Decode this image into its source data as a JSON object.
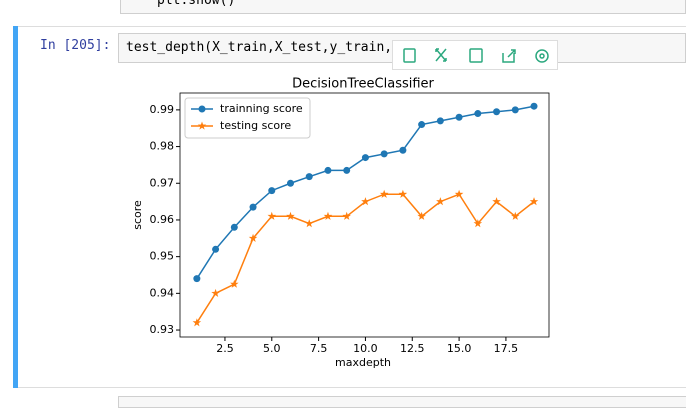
{
  "notebook": {
    "prev_code": "plt.show()",
    "prompt": "In [205]:",
    "code": "test_depth(X_train,X_test,y_train,"
  },
  "chart_data": {
    "type": "line",
    "title": "DecisionTreeClassifier",
    "x_label": "maxdepth",
    "y_label": "score",
    "x": [
      1,
      2,
      3,
      4,
      5,
      6,
      7,
      8,
      9,
      10,
      11,
      12,
      13,
      14,
      15,
      16,
      17,
      18,
      19
    ],
    "series": [
      {
        "name": "trainning score",
        "color": "#1f77b4",
        "marker": "circle",
        "values": [
          0.944,
          0.952,
          0.958,
          0.9635,
          0.968,
          0.97,
          0.9718,
          0.9735,
          0.9735,
          0.977,
          0.978,
          0.979,
          0.986,
          0.987,
          0.988,
          0.989,
          0.9895,
          0.99,
          0.991
        ]
      },
      {
        "name": "testing score",
        "color": "#ff7f0e",
        "marker": "star",
        "values": [
          0.932,
          0.94,
          0.9425,
          0.955,
          0.961,
          0.961,
          0.959,
          0.961,
          0.961,
          0.965,
          0.967,
          0.967,
          0.961,
          0.965,
          0.967,
          0.959,
          0.965,
          0.961,
          0.965
        ]
      }
    ],
    "xlim": [
      0.1,
      19.8
    ],
    "ylim": [
      0.9281,
      0.9946
    ],
    "xticks": [
      2.5,
      {
        "value": 5,
        "label": "5.0"
      },
      7.5,
      {
        "value": 10,
        "label": "10.0"
      },
      12.5,
      {
        "value": 15,
        "label": "15.0"
      },
      17.5
    ],
    "yticks": [
      0.93,
      0.94,
      0.95,
      0.96,
      0.97,
      0.98,
      0.99
    ],
    "legend": "upper left"
  }
}
